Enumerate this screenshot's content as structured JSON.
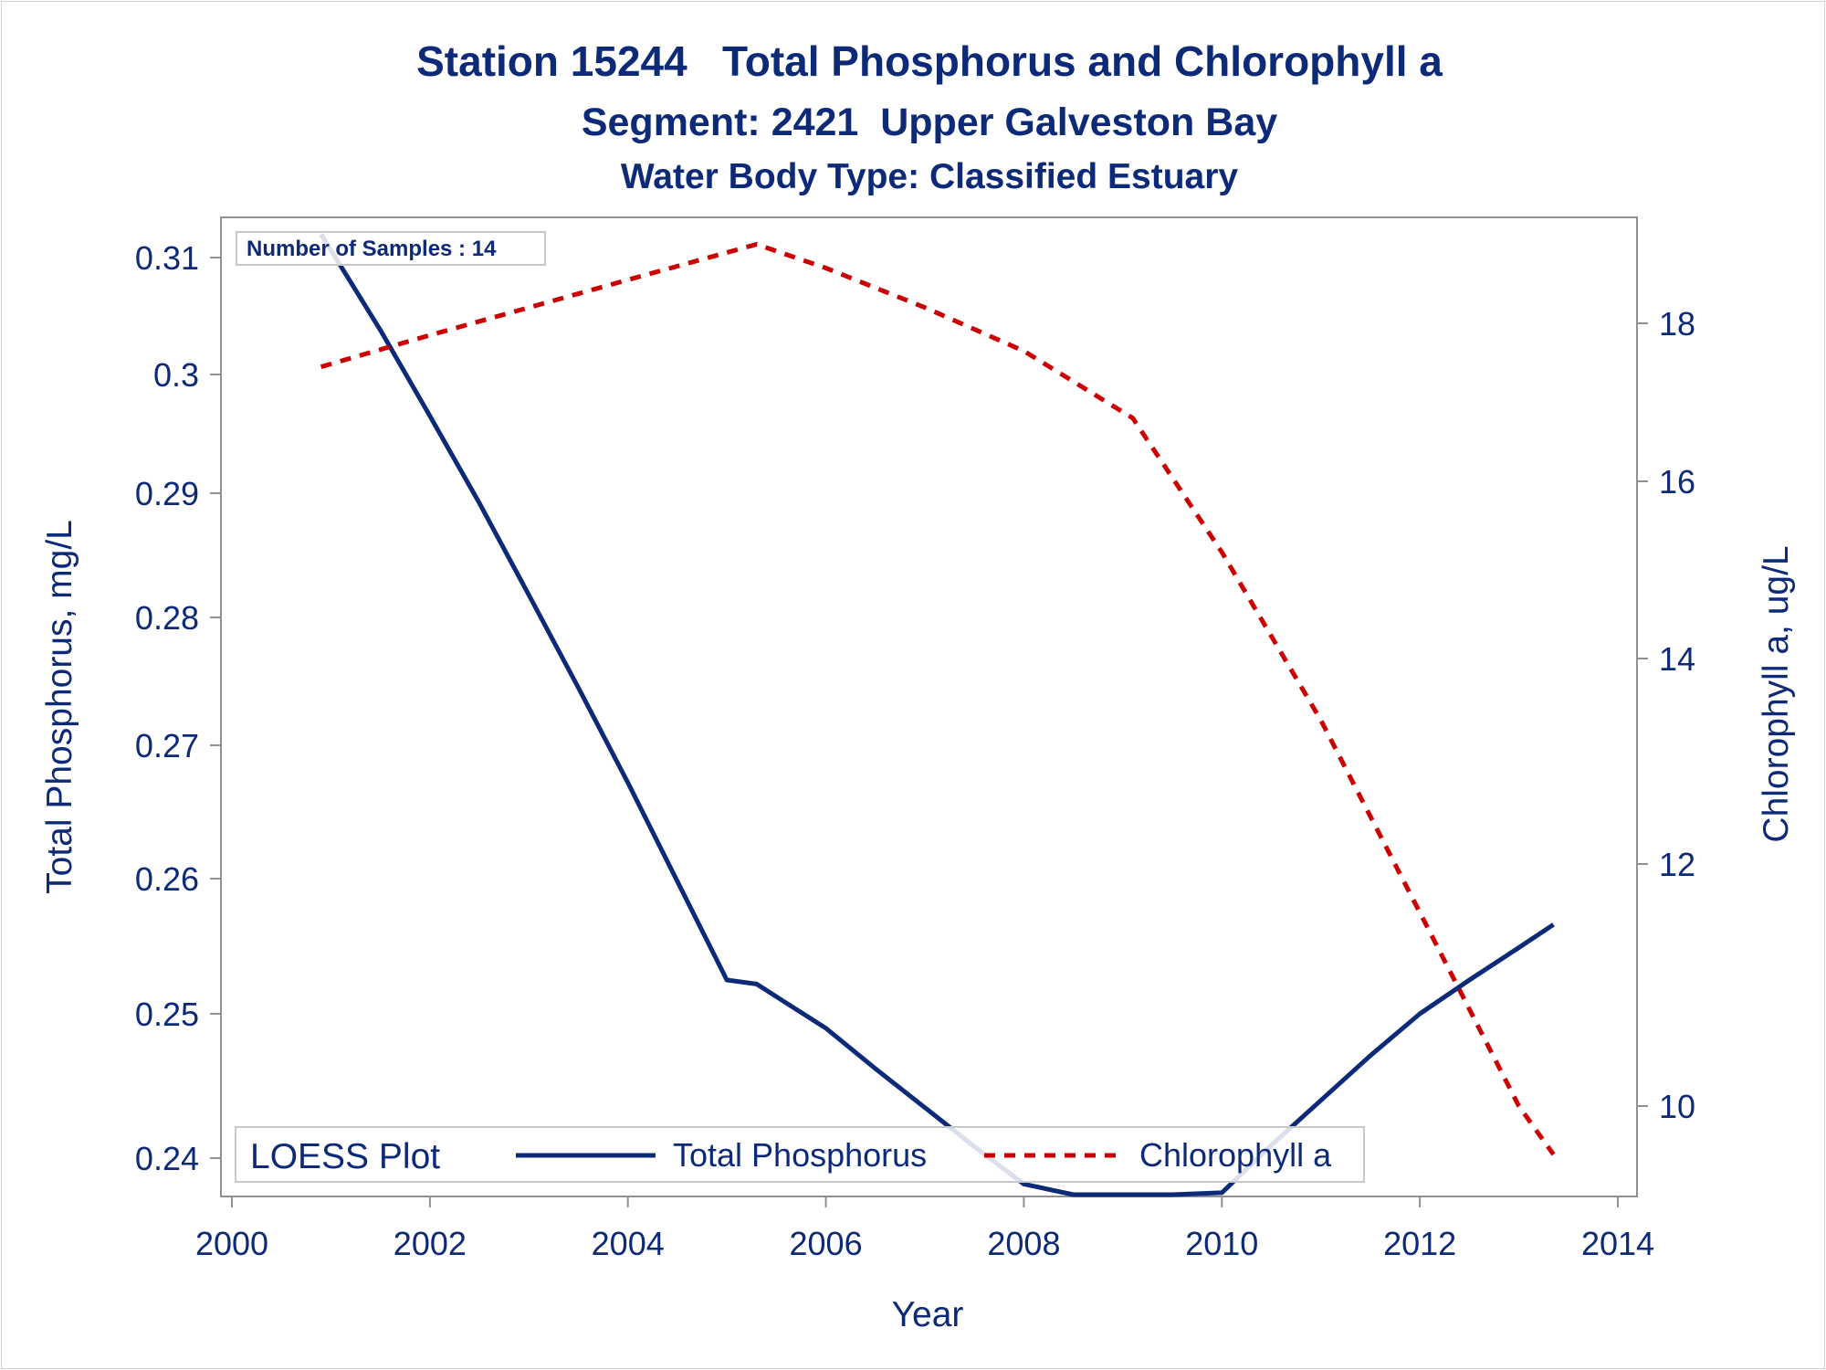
{
  "chart_data": {
    "type": "line",
    "title": "Station 15244   Total Phosphorus and Chlorophyll a",
    "subtitle": "Segment: 2421  Upper Galveston Bay",
    "subtitle2": "Water Body Type: Classified Estuary",
    "xlabel": "Year",
    "ylabel_left": "Total Phosphorus, mg/L",
    "ylabel_right": "Chlorophyll a, ug/L",
    "inset_label": "Number of Samples : 14",
    "legend": {
      "title": "LOESS Plot",
      "placement": "bottom-inside",
      "entries": [
        "Total Phosphorus",
        "Chlorophyll a"
      ]
    },
    "xlim": [
      2000,
      2014
    ],
    "x_ticks": [
      2000,
      2002,
      2004,
      2006,
      2008,
      2010,
      2012,
      2014
    ],
    "y_left_ticks": [
      0.24,
      0.25,
      0.26,
      0.27,
      0.28,
      0.29,
      0.3,
      0.31
    ],
    "y_left_tick_labels": [
      "0.24",
      "0.25",
      "0.26",
      "0.27",
      "0.28",
      "0.29",
      "0.3",
      "0.31"
    ],
    "y_right_ticks": [
      10,
      12,
      14,
      16,
      18
    ],
    "series": [
      {
        "name": "Total Phosphorus",
        "axis": "left",
        "color": "#0d2a78",
        "style": "solid",
        "x": [
          2000.9,
          2001.5,
          2002.0,
          2002.5,
          2003.0,
          2003.5,
          2004.0,
          2004.5,
          2005.0,
          2005.3,
          2005.6,
          2006.0,
          2006.5,
          2007.0,
          2007.5,
          2008.0,
          2008.5,
          2009.1,
          2009.5,
          2010.0,
          2010.5,
          2011.0,
          2011.5,
          2012.0,
          2012.5,
          2013.0,
          2013.35
        ],
        "y": [
          0.312,
          0.3038,
          0.2965,
          0.2892,
          0.2818,
          0.2745,
          0.2672,
          0.2598,
          0.2525,
          0.2522,
          0.2508,
          0.249,
          0.2462,
          0.2435,
          0.2408,
          0.2382,
          0.2352,
          0.2318,
          0.2343,
          0.2376,
          0.2409,
          0.244,
          0.2471,
          0.25,
          0.2525,
          0.2549,
          0.2566
        ]
      },
      {
        "name": "Chlorophyll a",
        "axis": "right",
        "color": "#cc0000",
        "style": "dashed",
        "x": [
          2000.9,
          2002.0,
          2003.0,
          2004.0,
          2005.3,
          2006.0,
          2007.0,
          2008.0,
          2009.1,
          2010.0,
          2011.0,
          2012.0,
          2012.5,
          2013.0,
          2013.35
        ],
        "y": [
          17.45,
          17.85,
          18.2,
          18.55,
          19.0,
          18.7,
          18.2,
          17.65,
          16.8,
          15.2,
          13.4,
          11.6,
          10.8,
          10.0,
          9.6
        ]
      }
    ]
  }
}
